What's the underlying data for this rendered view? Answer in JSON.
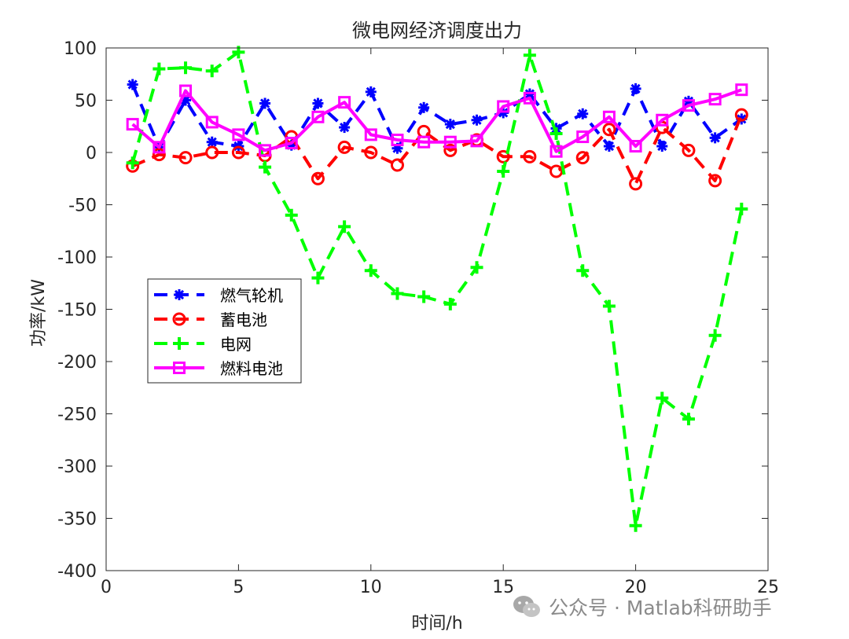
{
  "chart_data": {
    "type": "line",
    "title": "微电网经济调度出力",
    "xlabel": "时间/h",
    "ylabel": "功率/kW",
    "xlim": [
      0,
      25
    ],
    "ylim": [
      -400,
      100
    ],
    "x_ticks": [
      "0",
      "5",
      "10",
      "15",
      "20",
      "25"
    ],
    "y_ticks": [
      "100",
      "50",
      "0",
      "-50",
      "-100",
      "-150",
      "-200",
      "-250",
      "-300",
      "-350",
      "-400"
    ],
    "x": [
      1,
      2,
      3,
      4,
      5,
      6,
      7,
      8,
      9,
      10,
      11,
      12,
      13,
      14,
      15,
      16,
      17,
      18,
      19,
      20,
      21,
      22,
      23,
      24
    ],
    "legend_position": "left-middle",
    "series": [
      {
        "name": "燃气轮机",
        "color": "#0000ff",
        "marker": "asterisk",
        "linestyle": "dashed",
        "values": [
          65,
          5,
          50,
          10,
          6,
          47,
          7,
          47,
          24,
          58,
          4,
          43,
          27,
          31,
          38,
          56,
          23,
          37,
          6,
          61,
          6,
          49,
          14,
          32
        ]
      },
      {
        "name": "蓄电池",
        "color": "#ff0000",
        "marker": "circle",
        "linestyle": "dashed",
        "values": [
          -13,
          -2,
          -5,
          0,
          0,
          -3,
          15,
          -25,
          5,
          0,
          -12,
          20,
          2,
          12,
          -4,
          -4,
          -18,
          -5,
          22,
          -30,
          24,
          2,
          -27,
          36
        ]
      },
      {
        "name": "电网",
        "color": "#00ff00",
        "marker": "plus",
        "linestyle": "dashed",
        "values": [
          -10,
          80,
          81,
          78,
          96,
          -14,
          -60,
          -120,
          -71,
          -113,
          -135,
          -138,
          -145,
          -110,
          -18,
          93,
          18,
          -113,
          -147,
          -357,
          -235,
          -255,
          -175,
          -54
        ]
      },
      {
        "name": "燃料电池",
        "color": "#ff00ff",
        "marker": "square",
        "linestyle": "solid",
        "values": [
          27,
          5,
          59,
          29,
          17,
          2,
          9,
          34,
          48,
          17,
          12,
          10,
          10,
          11,
          44,
          52,
          1,
          15,
          34,
          6,
          31,
          45,
          51,
          60
        ]
      }
    ]
  },
  "watermark": {
    "text": "公众号 · Matlab科研助手"
  }
}
